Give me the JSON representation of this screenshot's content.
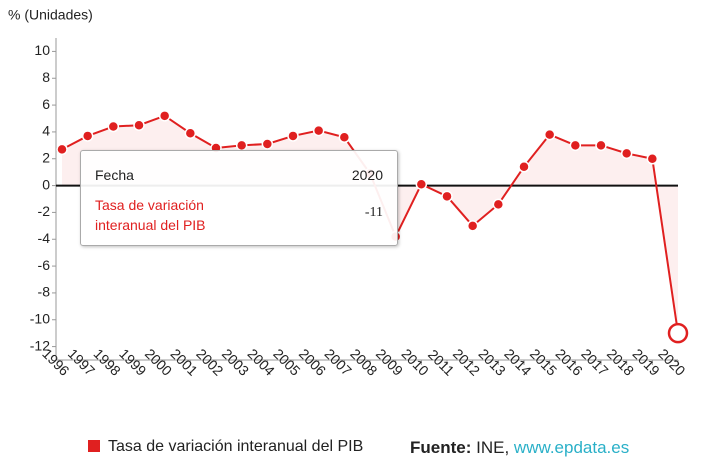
{
  "chart_data": {
    "type": "line",
    "ylabel": "% (Unidades)",
    "categories": [
      "1996",
      "1997",
      "1998",
      "1999",
      "2000",
      "2001",
      "2002",
      "2003",
      "2004",
      "2005",
      "2006",
      "2007",
      "2008",
      "2009",
      "2010",
      "2011",
      "2012",
      "2013",
      "2014",
      "2015",
      "2016",
      "2017",
      "2018",
      "2019",
      "2020"
    ],
    "series": [
      {
        "name": "Tasa de variación interanual del PIB",
        "color": "#e02020",
        "values": [
          2.7,
          3.7,
          4.4,
          4.5,
          5.2,
          3.9,
          2.8,
          3.0,
          3.1,
          3.7,
          4.1,
          3.6,
          0.9,
          -3.8,
          0.1,
          -0.8,
          -3.0,
          -1.4,
          1.4,
          3.8,
          3.0,
          3.0,
          2.4,
          2.0,
          -11
        ]
      }
    ],
    "ylim": [
      -13,
      11
    ],
    "yticks": [
      -12,
      -10,
      -8,
      -6,
      -4,
      -2,
      0,
      2,
      4,
      6,
      8,
      10
    ],
    "tooltip": {
      "header": "Fecha"
    },
    "source": {
      "label": "Fuente:",
      "text": "INE,",
      "link": "www.epdata.es"
    }
  }
}
